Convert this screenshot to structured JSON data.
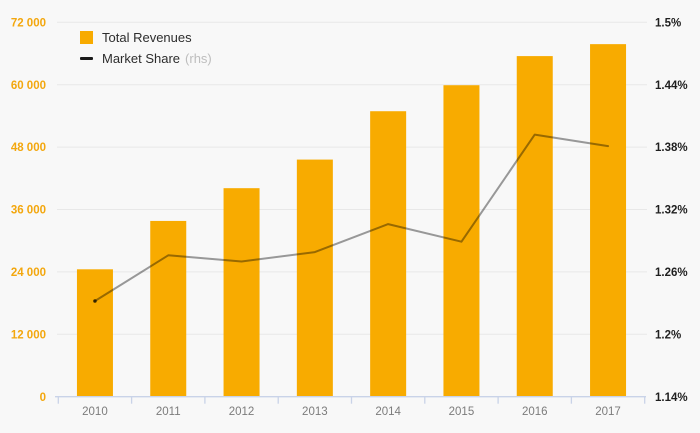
{
  "chart_data": {
    "type": "bar",
    "title": "",
    "categories": [
      "2010",
      "2011",
      "2012",
      "2013",
      "2014",
      "2015",
      "2016",
      "2017"
    ],
    "series": [
      {
        "name": "Total Revenues",
        "type": "bar",
        "axis": "left",
        "color": "#f8ab00",
        "values": [
          24500,
          33800,
          40100,
          45600,
          54900,
          59900,
          65500,
          67800
        ]
      },
      {
        "name": "Market Share",
        "type": "line",
        "axis": "right",
        "color": "#9c9c9c",
        "legend_note": "(rhs)",
        "values": [
          1.232,
          1.276,
          1.27,
          1.279,
          1.306,
          1.289,
          1.392,
          1.381
        ]
      }
    ],
    "left_axis": {
      "min": 0,
      "max": 72000,
      "step": 12000,
      "tick_labels": [
        "0",
        "12 000",
        "24 000",
        "36 000",
        "48 000",
        "60 000",
        "72 000"
      ],
      "label_color": "#f3a70e"
    },
    "right_axis": {
      "min": 1.14,
      "max": 1.5,
      "step": 0.06,
      "tick_labels": [
        "1.14%",
        "1.2%",
        "1.26%",
        "1.32%",
        "1.38%",
        "1.44%",
        "1.5%"
      ],
      "label_color": "#1f1f1f"
    },
    "x_axis": {
      "labels": [
        "2010",
        "2011",
        "2012",
        "2013",
        "2014",
        "2015",
        "2016",
        "2017"
      ],
      "label_color": "#7c7c7c",
      "axis_color": "#c9d3e8"
    },
    "grid": {
      "horizontal": true,
      "vertical": false,
      "color": "#e8e8e8"
    },
    "legend_position": "top-left",
    "background": "#f8f8f8"
  },
  "legend": {
    "revenues": "Total Revenues",
    "share": "Market Share",
    "share_note": "(rhs)"
  }
}
